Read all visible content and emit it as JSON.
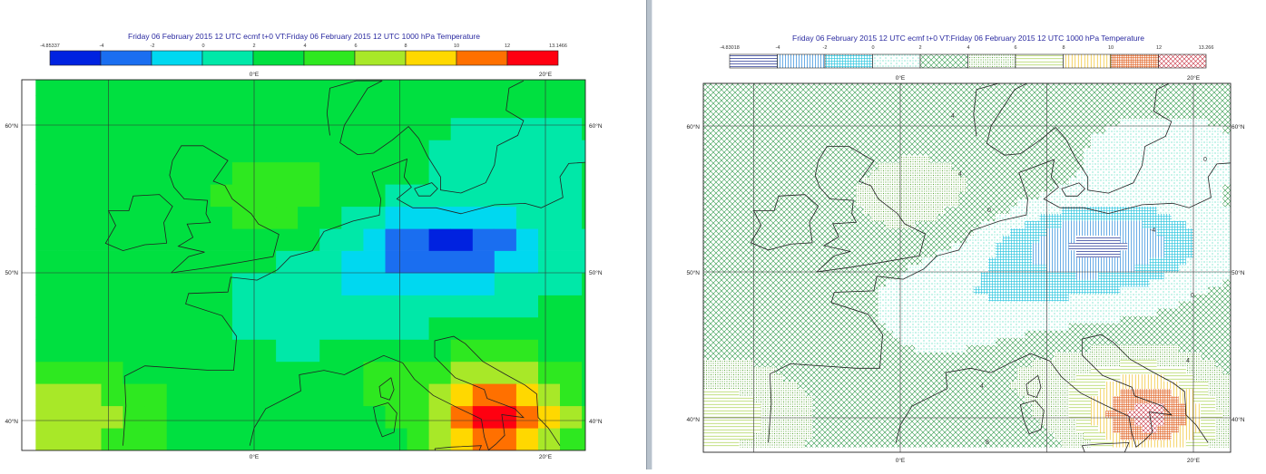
{
  "panels": [
    {
      "id": "left",
      "style": "shaded",
      "title": "Friday 06 February 2015 12 UTC ecmf t+0 VT:Friday 06 February 2015 12 UTC 1000 hPa  Temperature",
      "legend_labels": [
        "-4.85337",
        "-4",
        "-2",
        "0",
        "2",
        "4",
        "6",
        "8",
        "10",
        "12",
        "13.1466"
      ],
      "lon_labels": [
        {
          "lon": 0,
          "text": "0°E"
        },
        {
          "lon": 20,
          "text": "20°E"
        }
      ],
      "lat_labels": [
        {
          "lat": 60,
          "text": "60°N"
        },
        {
          "lat": 50,
          "text": "50°N"
        },
        {
          "lat": 40,
          "text": "40°N"
        }
      ]
    },
    {
      "id": "right",
      "style": "hatched",
      "title": "Friday 06 February 2015 12 UTC ecmf t+0 VT:Friday 06 February 2015 12 UTC 1000 hPa  Temperature",
      "legend_labels": [
        "-4.83018",
        "-4",
        "-2",
        "0",
        "2",
        "4",
        "6",
        "8",
        "10",
        "12",
        "13.266"
      ],
      "lon_labels": [
        {
          "lon": 0,
          "text": "0°E"
        },
        {
          "lon": 20,
          "text": "20°E"
        }
      ],
      "lat_labels": [
        {
          "lat": 60,
          "text": "60°N"
        },
        {
          "lat": 50,
          "text": "50°N"
        },
        {
          "lat": 40,
          "text": "40°N"
        }
      ],
      "contour_labels": [
        "4",
        "0",
        "-4",
        "0",
        "0",
        "4",
        "4",
        "4",
        "8"
      ]
    }
  ],
  "map_extent": {
    "lon": [
      -15,
      23
    ],
    "lat": [
      38,
      63
    ]
  },
  "colors": {
    "class_colors": [
      "#0022e0",
      "#1a6ef0",
      "#00d8f0",
      "#00e8a8",
      "#00e040",
      "#2ee820",
      "#a8e828",
      "#ffd800",
      "#ff7000",
      "#ff0010"
    ],
    "hatch_colors": [
      "#1a2a90",
      "#2a8adc",
      "#30c8e0",
      "#40d8b8",
      "#2f9a4a",
      "#5aa838",
      "#a8d24c",
      "#f0c020",
      "#e06020",
      "#c83040"
    ],
    "coastline": "#222222",
    "grid": "#333333",
    "title": "#2a2aa0"
  }
}
